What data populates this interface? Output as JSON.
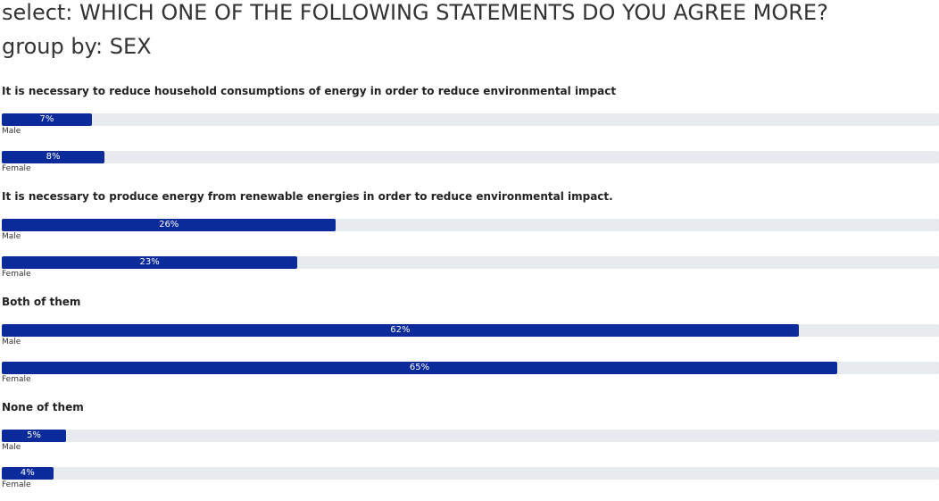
{
  "header": {
    "title_line1": "select: WHICH ONE OF THE FOLLOWING STATEMENTS DO YOU AGREE MORE?",
    "title_line2": "group by: SEX"
  },
  "colors": {
    "bar": "#0b2b9b",
    "track": "#e7eaee"
  },
  "chart_data": {
    "type": "bar",
    "orientation": "horizontal",
    "title": "select: WHICH ONE OF THE FOLLOWING STATEMENTS DO YOU AGREE MORE?",
    "subtitle": "group by: SEX",
    "unit": "%",
    "xlim": [
      0,
      70
    ],
    "groups": [
      {
        "label": "It is necessary to reduce household consumptions of energy in order to reduce environmental impact",
        "bars": [
          {
            "name": "Male",
            "value": 7,
            "text": "7%"
          },
          {
            "name": "Female",
            "value": 8,
            "text": "8%"
          }
        ]
      },
      {
        "label": "It is necessary to produce energy from renewable energies in order to reduce environmental impact.",
        "bars": [
          {
            "name": "Male",
            "value": 26,
            "text": "26%"
          },
          {
            "name": "Female",
            "value": 23,
            "text": "23%"
          }
        ]
      },
      {
        "label": "Both of them",
        "bars": [
          {
            "name": "Male",
            "value": 62,
            "text": "62%"
          },
          {
            "name": "Female",
            "value": 65,
            "text": "65%"
          }
        ]
      },
      {
        "label": "None of them",
        "bars": [
          {
            "name": "Male",
            "value": 5,
            "text": "5%"
          },
          {
            "name": "Female",
            "value": 4,
            "text": "4%"
          }
        ]
      }
    ]
  }
}
